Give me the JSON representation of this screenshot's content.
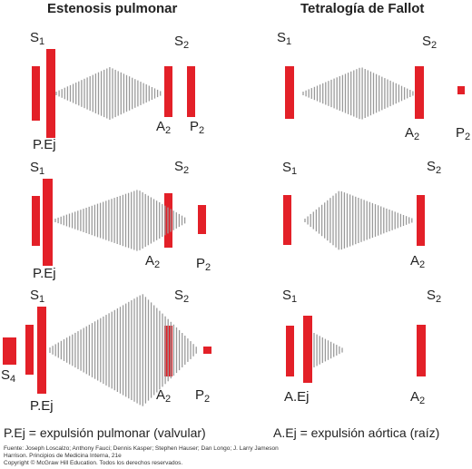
{
  "titles": {
    "left": "Estenosis pulmonar",
    "right": "Tetralogía de Fallot"
  },
  "sound_labels": {
    "s1": {
      "main": "S",
      "sub": "1"
    },
    "s2": {
      "main": "S",
      "sub": "2"
    },
    "s4": {
      "main": "S",
      "sub": "4"
    },
    "a2": {
      "main": "A",
      "sub": "2"
    },
    "p2": {
      "main": "P",
      "sub": "2"
    },
    "pej": "P.Ej",
    "aej": "A.Ej"
  },
  "legend": {
    "left": "P.Ej = expulsión pulmonar (valvular)",
    "right": "A.Ej = expulsión aórtica (raíz)"
  },
  "credits": [
    "Fuente: Joseph Loscalzo; Anthony Fauci; Dennis Kasper; Stephen Hauser; Dan Longo; J. Larry Jameson",
    "Harrison. Principios de Medicina Interna, 21e",
    "Copyright © McGraw Hill Education. Todos los derechos reservados."
  ],
  "colors": {
    "sound_bar": "#e32028",
    "murmur_lines": "#9a9a9a",
    "text": "#222222"
  }
}
